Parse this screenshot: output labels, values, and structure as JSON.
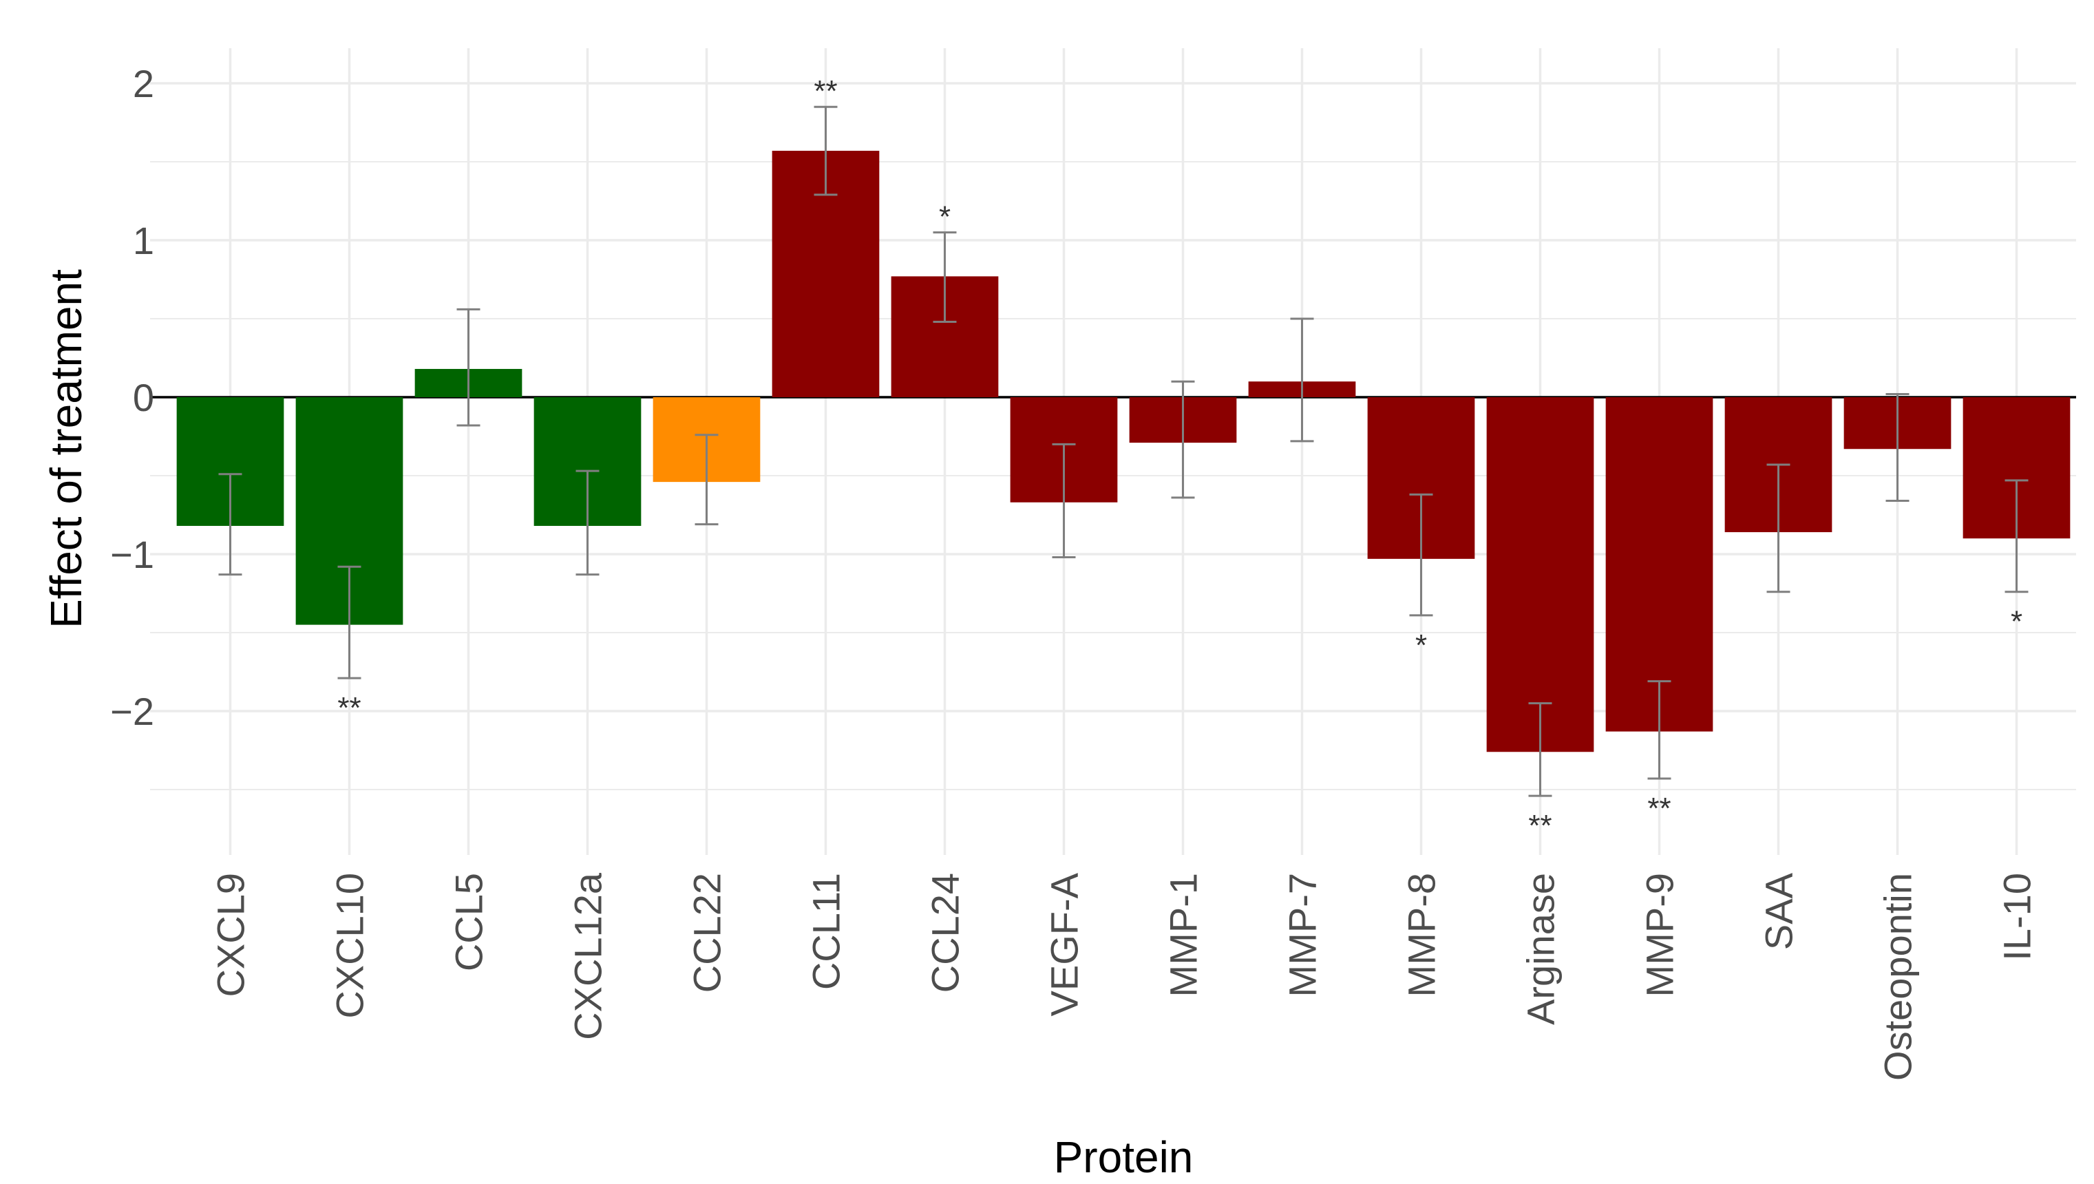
{
  "chart_data": {
    "type": "bar",
    "xlabel": "Protein",
    "ylabel": "Effect of treatment",
    "ylim": [
      -2.9,
      2.1
    ],
    "yticks": [
      2,
      1,
      0,
      -1,
      -2
    ],
    "ytick_labels": [
      "2",
      "1",
      "0",
      "−1",
      "−2"
    ],
    "grid": true,
    "legend": "none",
    "categories": [
      "CXCL9",
      "CXCL10",
      "CCL5",
      "CXCL12a",
      "CCL22",
      "CCL11",
      "CCL24",
      "VEGF-A",
      "MMP-1",
      "MMP-7",
      "MMP-8",
      "Arginase",
      "MMP-9",
      "SAA",
      "Osteopontin",
      "IL-10"
    ],
    "values": [
      -0.82,
      -1.45,
      0.18,
      -0.82,
      -0.54,
      1.57,
      0.77,
      -0.67,
      -0.29,
      0.1,
      -1.03,
      -2.26,
      -2.13,
      -0.86,
      -0.33,
      -0.9
    ],
    "error_low": [
      -1.13,
      -1.79,
      -0.18,
      -1.13,
      -0.81,
      1.29,
      0.48,
      -1.02,
      -0.64,
      -0.28,
      -1.39,
      -2.54,
      -2.43,
      -1.24,
      -0.66,
      -1.24
    ],
    "error_high": [
      -0.49,
      -1.08,
      0.56,
      -0.47,
      -0.24,
      1.85,
      1.05,
      -0.3,
      0.1,
      0.5,
      -0.62,
      -1.95,
      -1.81,
      -0.43,
      0.02,
      -0.53
    ],
    "significance": [
      "",
      "**",
      "",
      "",
      "",
      "**",
      "*",
      "",
      "",
      "",
      "*",
      "**",
      "**",
      "",
      "",
      "*"
    ],
    "colors": [
      "#006400",
      "#006400",
      "#006400",
      "#006400",
      "#FF8C00",
      "#8B0000",
      "#8B0000",
      "#8B0000",
      "#8B0000",
      "#8B0000",
      "#8B0000",
      "#8B0000",
      "#8B0000",
      "#8B0000",
      "#8B0000",
      "#8B0000"
    ],
    "gridline_color": "#ebebeb",
    "errorbar_color": "#7f7f7f"
  }
}
